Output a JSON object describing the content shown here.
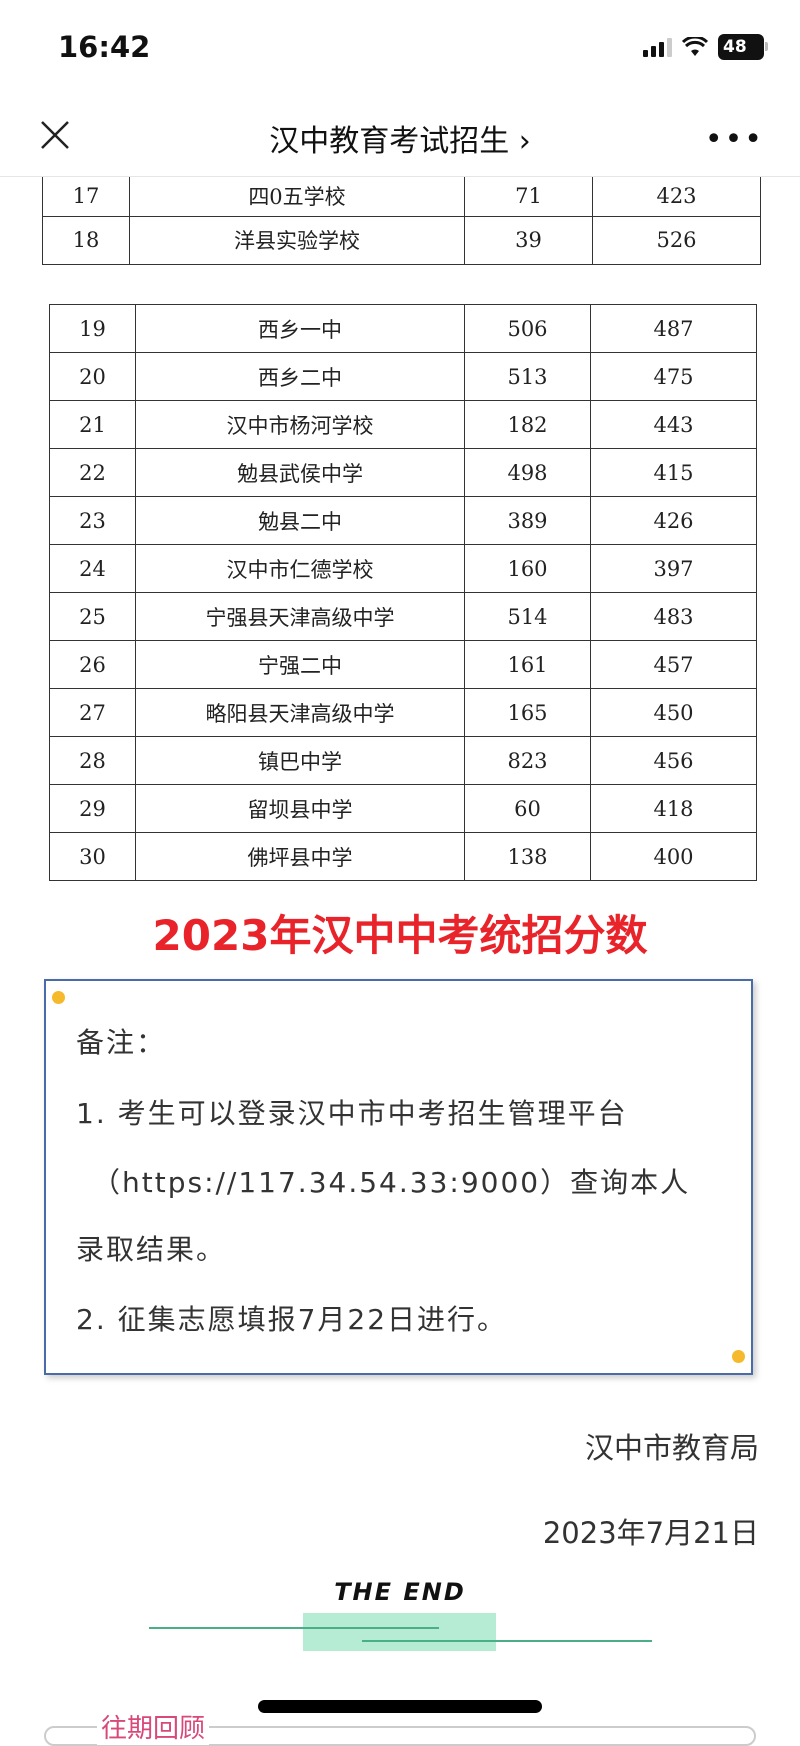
{
  "status_bar": {
    "time": "16:42",
    "battery": "48"
  },
  "nav": {
    "title": "汉中教育考试招生",
    "chevron": "›",
    "more": "•••"
  },
  "table_top": [
    [
      "17",
      "四0五学校",
      "71",
      "423"
    ],
    [
      "18",
      "洋县实验学校",
      "39",
      "526"
    ]
  ],
  "table_main": [
    [
      "19",
      "西乡一中",
      "506",
      "487"
    ],
    [
      "20",
      "西乡二中",
      "513",
      "475"
    ],
    [
      "21",
      "汉中市杨河学校",
      "182",
      "443"
    ],
    [
      "22",
      "勉县武侯中学",
      "498",
      "415"
    ],
    [
      "23",
      "勉县二中",
      "389",
      "426"
    ],
    [
      "24",
      "汉中市仁德学校",
      "160",
      "397"
    ],
    [
      "25",
      "宁强县天津高级中学",
      "514",
      "483"
    ],
    [
      "26",
      "宁强二中",
      "161",
      "457"
    ],
    [
      "27",
      "略阳县天津高级中学",
      "165",
      "450"
    ],
    [
      "28",
      "镇巴中学",
      "823",
      "456"
    ],
    [
      "29",
      "留坝县中学",
      "60",
      "418"
    ],
    [
      "30",
      "佛坪县中学",
      "138",
      "400"
    ]
  ],
  "banner": "2023年汉中中考统招分数",
  "notes": {
    "title": "备注：",
    "lines": [
      "1. 考生可以登录汉中市中考招生管理平台",
      "（https://117.34.54.33:9000）查询本人",
      "录取结果。",
      "2. 征集志愿填报7月22日进行。"
    ]
  },
  "signature": {
    "org": "汉中市教育局",
    "date": "2023年7月21日"
  },
  "end_label": "THE END",
  "past_label": "往期回顾",
  "colors": {
    "banner": "#e8232a",
    "notes_border": "#4a6aa8",
    "accent_green": "#b5ecd3",
    "dot": "#f5b92b",
    "past": "#d9487a"
  }
}
